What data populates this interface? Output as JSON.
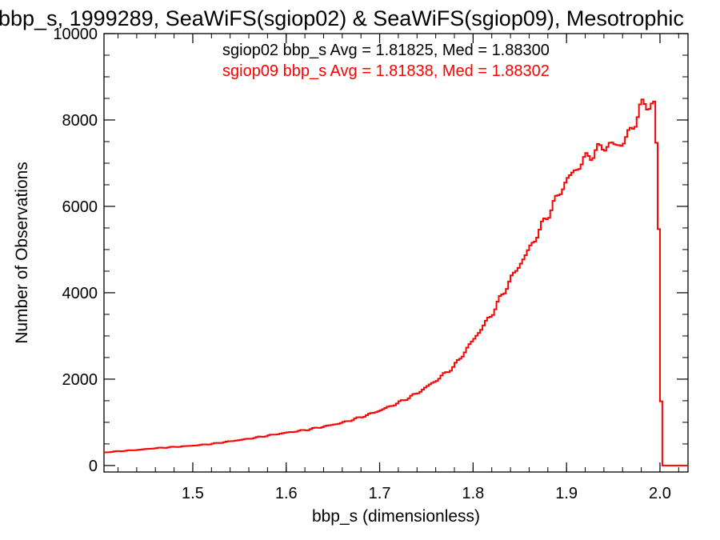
{
  "chart_data": {
    "type": "line",
    "title": "bbp_s, 1999289, SeaWiFS(sgiop02) & SeaWiFS(sgiop09), Mesotrophic",
    "xlabel": "bbp_s (dimensionless)",
    "ylabel": "Number of Observations",
    "xlim": [
      1.405,
      2.03
    ],
    "ylim": [
      -150,
      10000
    ],
    "xticks": [
      1.5,
      1.6,
      1.7,
      1.8,
      1.9,
      2.0
    ],
    "xtick_labels": [
      "1.5",
      "1.6",
      "1.7",
      "1.8",
      "1.9",
      "2.0"
    ],
    "yticks": [
      0,
      2000,
      4000,
      6000,
      8000,
      10000
    ],
    "ytick_labels": [
      "0",
      "2000",
      "4000",
      "6000",
      "8000",
      "10000"
    ],
    "grid": false,
    "annotations": [
      {
        "text": "sgiop02 bbp_s Avg = 1.81825, Med = 1.88300",
        "color": "#000000"
      },
      {
        "text": "sgiop09 bbp_s Avg = 1.81838, Med = 1.88302",
        "color": "#ff0000"
      }
    ],
    "series": [
      {
        "color": "#ff0000",
        "x": [
          1.405,
          1.42,
          1.44,
          1.46,
          1.48,
          1.5,
          1.52,
          1.54,
          1.56,
          1.58,
          1.6,
          1.62,
          1.64,
          1.66,
          1.68,
          1.7,
          1.72,
          1.74,
          1.76,
          1.78,
          1.8,
          1.82,
          1.84,
          1.86,
          1.88,
          1.9,
          1.92,
          1.94,
          1.95,
          1.96,
          1.97,
          1.98,
          1.985,
          1.99,
          1.995,
          1.997,
          1.999,
          2.001,
          2.003,
          2.03
        ],
        "y": [
          300,
          330,
          360,
          400,
          430,
          460,
          500,
          560,
          620,
          690,
          760,
          820,
          900,
          990,
          1120,
          1270,
          1450,
          1670,
          1960,
          2300,
          2900,
          3500,
          4300,
          5000,
          5800,
          6600,
          7100,
          7400,
          7420,
          7450,
          7800,
          8300,
          8400,
          8350,
          8300,
          6900,
          5300,
          1700,
          0,
          0
        ]
      }
    ]
  }
}
